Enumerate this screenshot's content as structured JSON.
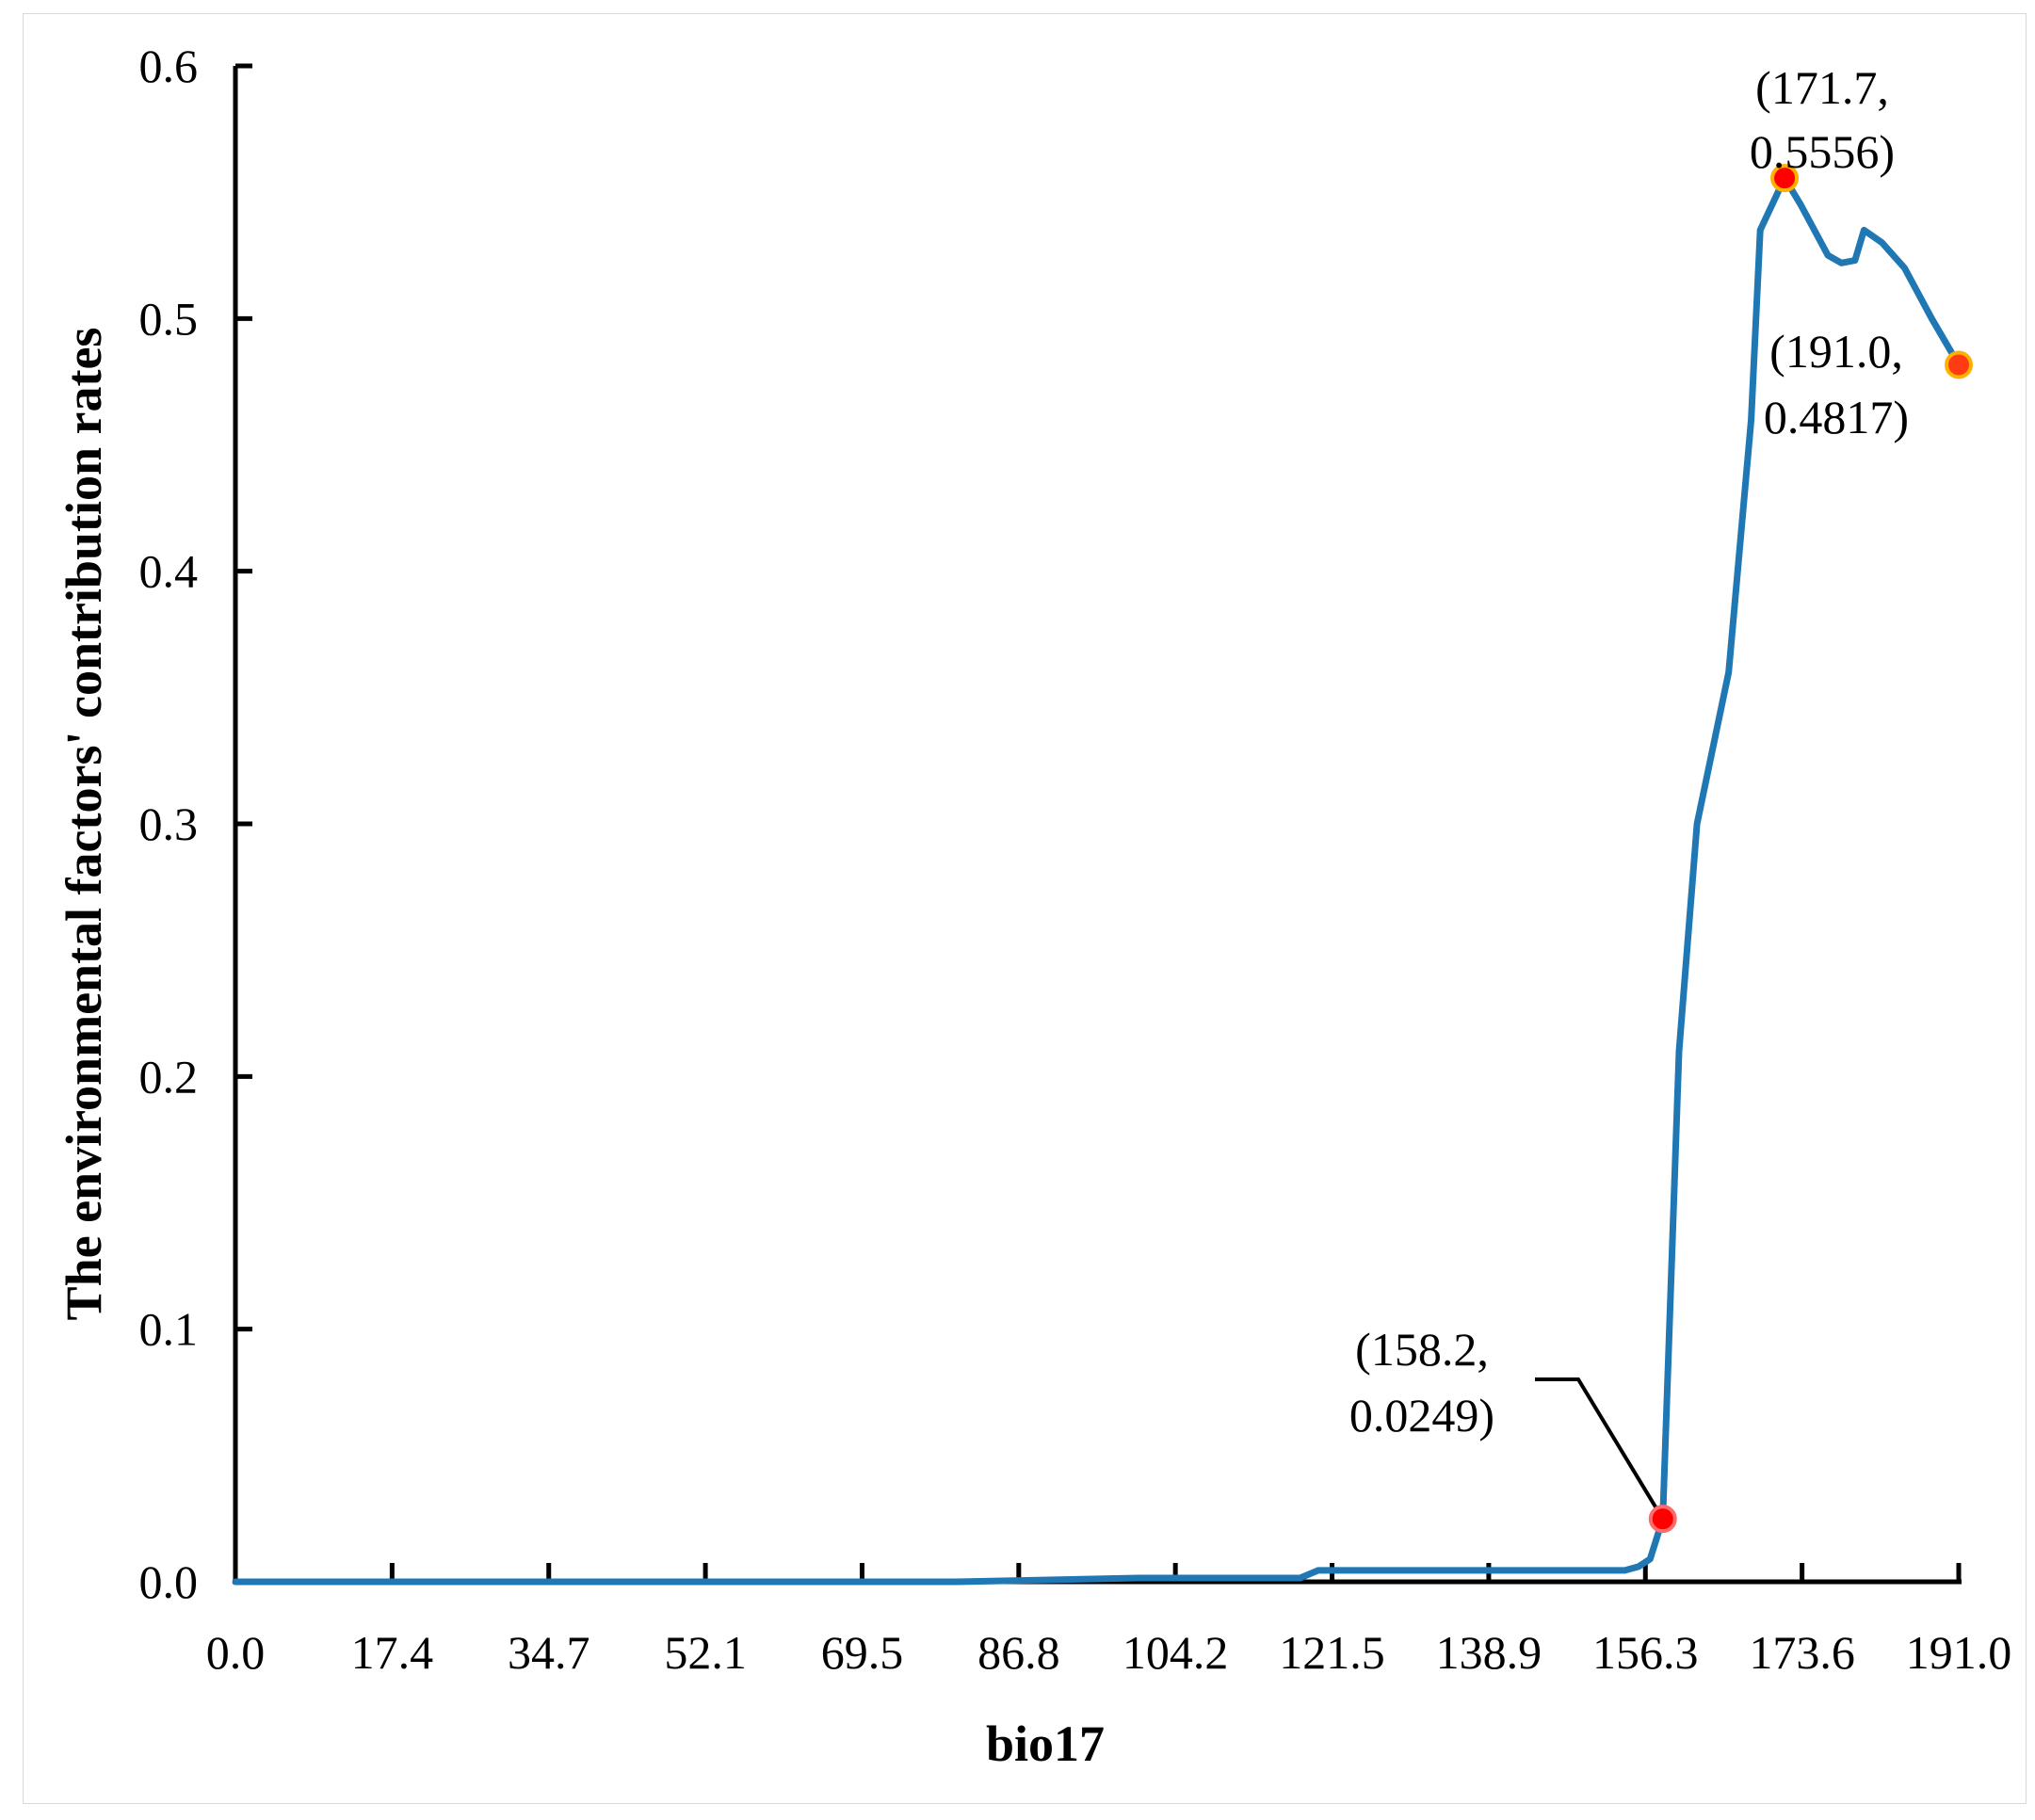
{
  "chart_data": {
    "type": "line",
    "title": "",
    "xlabel": "bio17",
    "ylabel": "The environmental factors' contribution rates",
    "xlim": [
      0,
      191
    ],
    "ylim": [
      0,
      0.6
    ],
    "x_ticks": [
      "0.0",
      "17.4",
      "34.7",
      "52.1",
      "69.5",
      "86.8",
      "104.2",
      "121.5",
      "138.9",
      "156.3",
      "173.6",
      "191.0"
    ],
    "y_ticks": [
      "0.0",
      "0.1",
      "0.2",
      "0.3",
      "0.4",
      "0.5",
      "0.6"
    ],
    "grid": false,
    "line_color": "#1f77b4",
    "marker_color": "#ff0000",
    "series": [
      {
        "x": [
          0,
          40,
          80,
          100,
          110,
          118,
          120,
          125,
          130,
          140,
          150,
          154,
          155.5,
          156.8,
          158.2,
          160.0,
          162.0,
          165.5,
          168.0,
          169.0,
          171.7,
          173.5,
          175.0,
          176.5,
          178.0,
          179.5,
          180.5,
          182.5,
          185.0,
          188.0,
          191.0
        ],
        "y": [
          0,
          0,
          0,
          0.0015,
          0.0015,
          0.0015,
          0.0045,
          0.0045,
          0.0045,
          0.0045,
          0.0045,
          0.0045,
          0.006,
          0.009,
          0.0249,
          0.21,
          0.3,
          0.36,
          0.46,
          0.535,
          0.5556,
          0.545,
          0.535,
          0.525,
          0.522,
          0.523,
          0.535,
          0.53,
          0.52,
          0.5,
          0.4817
        ]
      }
    ],
    "annotations": [
      {
        "x": 158.2,
        "y": 0.0249,
        "line1": "(158.2,",
        "line2": "0.0249)"
      },
      {
        "x": 171.7,
        "y": 0.5556,
        "line1": "(171.7,",
        "line2": "0.5556)"
      },
      {
        "x": 191.0,
        "y": 0.4817,
        "line1": "(191.0,",
        "line2": "0.4817)"
      }
    ]
  }
}
